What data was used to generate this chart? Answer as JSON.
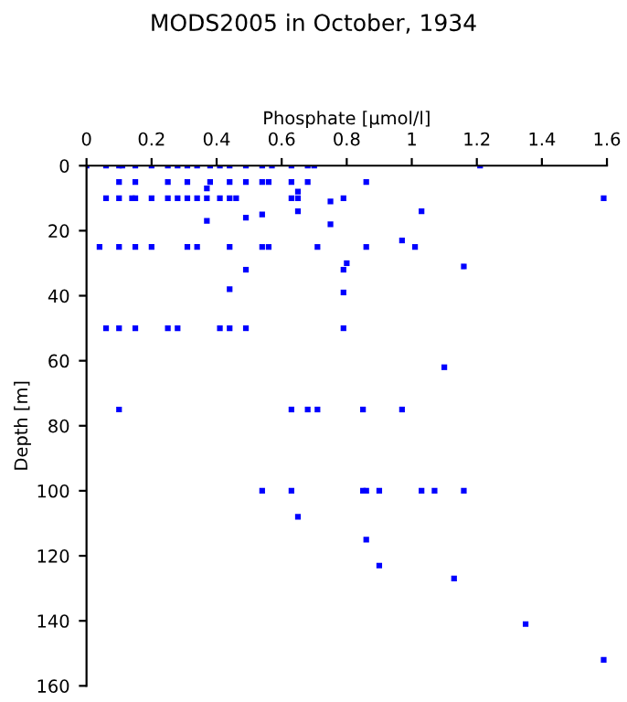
{
  "chart_data": {
    "type": "scatter",
    "title": "MODS2005 in October, 1934",
    "xlabel": "Phosphate [µmol/l]",
    "ylabel": "Depth [m]",
    "series": [
      {
        "color": "#0000ff",
        "x": [
          0,
          0.06,
          0.1,
          0.11,
          0.15,
          0.2,
          0.25,
          0.28,
          0.31,
          0.34,
          0.38,
          0.41,
          0.44,
          0.49,
          0.54,
          0.57,
          0.63,
          0.68,
          0.7,
          1.21,
          0.1,
          0.15,
          0.25,
          0.31,
          0.38,
          0.44,
          0.49,
          0.54,
          0.56,
          0.63,
          0.68,
          0.86,
          0.37,
          0.65,
          0.06,
          0.1,
          0.14,
          0.15,
          0.2,
          0.25,
          0.28,
          0.31,
          0.34,
          0.37,
          0.41,
          0.44,
          0.46,
          0.63,
          0.65,
          0.79,
          1.59,
          0.75,
          0.65,
          1.03,
          0.54,
          0.49,
          0.37,
          0.75,
          0.97,
          0.04,
          0.1,
          0.15,
          0.2,
          0.31,
          0.34,
          0.44,
          0.54,
          0.56,
          0.71,
          0.86,
          1.01,
          0.8,
          0.49,
          0.79,
          1.16,
          0.44,
          0.79,
          0.06,
          0.1,
          0.15,
          0.25,
          0.28,
          0.41,
          0.44,
          0.49,
          0.79,
          1.1,
          0.1,
          0.63,
          0.68,
          0.71,
          0.85,
          0.97,
          0.54,
          0.63,
          0.85,
          0.86,
          0.9,
          1.03,
          1.07,
          1.16,
          0.65,
          0.86,
          0.9,
          1.13,
          1.35,
          1.59
        ],
        "values": [
          0,
          0,
          0,
          0,
          0,
          0,
          0,
          0,
          0,
          0,
          0,
          0,
          0,
          0,
          0,
          0,
          0,
          0,
          0,
          0,
          5,
          5,
          5,
          5,
          5,
          5,
          5,
          5,
          5,
          5,
          5,
          5,
          7,
          8,
          10,
          10,
          10,
          10,
          10,
          10,
          10,
          10,
          10,
          10,
          10,
          10,
          10,
          10,
          10,
          10,
          10,
          11,
          14,
          14,
          15,
          16,
          17,
          18,
          23,
          25,
          25,
          25,
          25,
          25,
          25,
          25,
          25,
          25,
          25,
          25,
          25,
          30,
          32,
          32,
          31,
          38,
          39,
          50,
          50,
          50,
          50,
          50,
          50,
          50,
          50,
          50,
          62,
          75,
          75,
          75,
          75,
          75,
          75,
          100,
          100,
          100,
          100,
          100,
          100,
          100,
          100,
          108,
          115,
          123,
          127,
          141,
          152
        ]
      }
    ],
    "xlim": [
      0,
      1.6
    ],
    "ylim": [
      160,
      0
    ],
    "xticks": [
      0,
      0.2,
      0.4,
      0.6,
      0.8,
      1,
      1.2,
      1.4,
      1.6
    ],
    "yticks": [
      0,
      20,
      40,
      60,
      80,
      100,
      120,
      140,
      160
    ],
    "marker": "square",
    "grid": false
  }
}
